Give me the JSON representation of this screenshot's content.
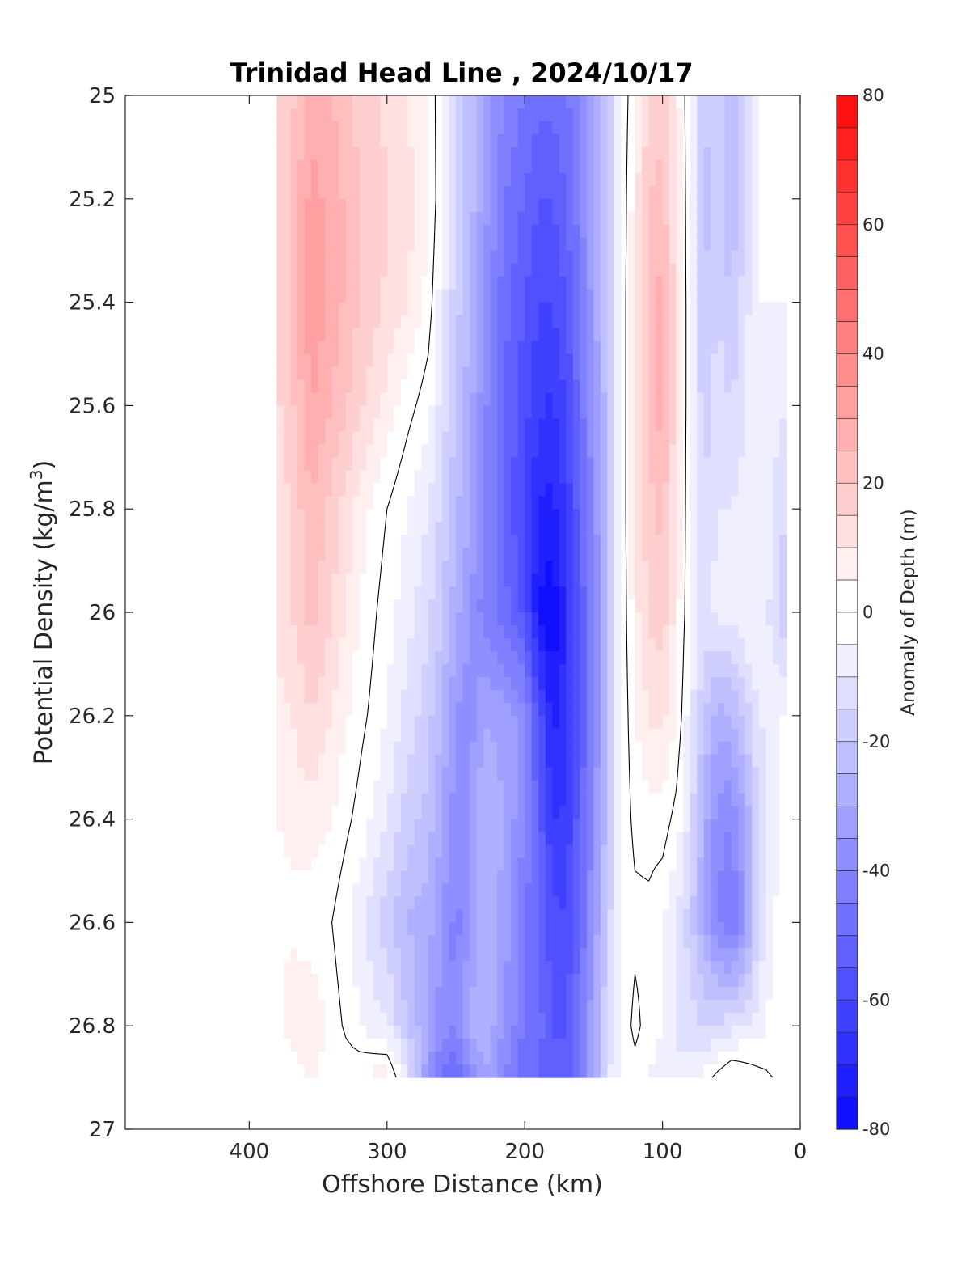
{
  "chart_data": {
    "type": "heatmap",
    "title": "Trinidad Head Line , 2024/10/17",
    "xlabel": "Offshore Distance (km)",
    "ylabel": "Potential Density (kg/m",
    "ylabel_sup": "3",
    "ylabel_end": ")",
    "xlim": [
      490,
      0
    ],
    "ylim": [
      25,
      27
    ],
    "x_ticks": [
      400,
      300,
      200,
      100,
      0
    ],
    "x_tick_labels": [
      "400",
      "300",
      "200",
      "100",
      "0"
    ],
    "y_ticks": [
      25,
      25.2,
      25.4,
      25.6,
      25.8,
      26,
      26.2,
      26.4,
      26.6,
      26.8,
      27
    ],
    "y_tick_labels": [
      "25",
      "25.2",
      "25.4",
      "25.6",
      "25.8",
      "26",
      "26.2",
      "26.4",
      "26.6",
      "26.8",
      "27"
    ],
    "colorbar": {
      "label": "Anomaly of Depth (m)",
      "range": [
        -80,
        80
      ],
      "ticks": [
        80,
        60,
        40,
        20,
        0,
        -20,
        -40,
        -60,
        -80
      ],
      "tick_labels": [
        "80",
        "60",
        "40",
        "20",
        "0",
        "-20",
        "-40",
        "-60",
        "-80"
      ],
      "level_step": 5,
      "colormap": "blue-white-red",
      "low_color": "#0000ff",
      "mid_color": "#ffffff",
      "high_color": "#ff0000"
    },
    "data_extent": {
      "x": [
        380,
        10
      ],
      "density": [
        25,
        26.9
      ]
    },
    "zero_contour": true,
    "x_nodes": [
      380,
      370,
      355,
      340,
      320,
      300,
      285,
      270,
      260,
      250,
      240,
      230,
      215,
      200,
      190,
      180,
      170,
      160,
      150,
      140,
      130,
      120,
      110,
      100,
      90,
      80,
      70,
      60,
      50,
      40,
      30,
      20,
      10
    ],
    "y_nodes": [
      25,
      25.2,
      25.4,
      25.6,
      25.8,
      26,
      26.2,
      26.4,
      26.6,
      26.8,
      26.9
    ],
    "values": [
      [
        15,
        18,
        28,
        25,
        18,
        14,
        10,
        5,
        -5,
        -15,
        -22,
        -30,
        -40,
        -45,
        -48,
        -48,
        -46,
        -40,
        -30,
        -20,
        -5,
        5,
        15,
        18,
        8,
        -5,
        -20,
        -15,
        -25,
        -15,
        -5,
        -3,
        -2
      ],
      [
        15,
        20,
        32,
        28,
        20,
        15,
        12,
        6,
        -5,
        -15,
        -22,
        -32,
        -45,
        -50,
        -55,
        -55,
        -50,
        -42,
        -30,
        -20,
        -5,
        8,
        20,
        22,
        10,
        -5,
        -22,
        -18,
        -25,
        -15,
        -5,
        -3,
        -3
      ],
      [
        15,
        20,
        35,
        28,
        20,
        14,
        10,
        3,
        -8,
        -18,
        -25,
        -35,
        -48,
        -55,
        -60,
        -60,
        -55,
        -45,
        -32,
        -20,
        -5,
        10,
        22,
        28,
        12,
        -5,
        -20,
        -15,
        -20,
        -12,
        -5,
        -5,
        -5
      ],
      [
        14,
        18,
        30,
        25,
        16,
        8,
        2,
        -3,
        -12,
        -20,
        -28,
        -38,
        -50,
        -58,
        -64,
        -66,
        -60,
        -48,
        -35,
        -22,
        -5,
        10,
        22,
        28,
        12,
        -5,
        -18,
        -12,
        -15,
        -10,
        -5,
        -8,
        -10
      ],
      [
        12,
        15,
        25,
        18,
        8,
        0,
        -5,
        -10,
        -16,
        -24,
        -30,
        -40,
        -50,
        -62,
        -70,
        -72,
        -64,
        -52,
        -38,
        -24,
        -5,
        10,
        18,
        22,
        10,
        -5,
        -15,
        -10,
        -10,
        -8,
        -5,
        -10,
        -15
      ],
      [
        12,
        14,
        22,
        15,
        5,
        -3,
        -8,
        -14,
        -20,
        -28,
        -35,
        -42,
        -48,
        -56,
        -76,
        -80,
        -68,
        -54,
        -40,
        -25,
        -5,
        8,
        16,
        18,
        8,
        -5,
        -12,
        -8,
        -8,
        -5,
        -5,
        -12,
        -20
      ],
      [
        8,
        10,
        15,
        10,
        2,
        -5,
        -12,
        -18,
        -25,
        -35,
        -38,
        -30,
        -32,
        -38,
        -56,
        -72,
        -68,
        -55,
        -40,
        -25,
        -5,
        5,
        10,
        12,
        5,
        -8,
        -20,
        -28,
        -25,
        -18,
        -10,
        -8,
        -3
      ],
      [
        5,
        6,
        8,
        5,
        -2,
        -10,
        -18,
        -22,
        -30,
        -38,
        -35,
        -25,
        -30,
        -40,
        -52,
        -65,
        -64,
        -52,
        -38,
        -22,
        -5,
        2,
        3,
        3,
        -2,
        -12,
        -28,
        -38,
        -40,
        -30,
        -15,
        -8,
        -3
      ],
      [
        3,
        4,
        2,
        0,
        -8,
        -18,
        -25,
        -28,
        -35,
        -42,
        -35,
        -25,
        -32,
        -45,
        -50,
        -58,
        -60,
        -50,
        -35,
        -18,
        -5,
        -2,
        -2,
        -5,
        -10,
        -18,
        -30,
        -40,
        -45,
        -35,
        -15,
        -5,
        -2
      ],
      [
        4,
        8,
        10,
        3,
        -5,
        -10,
        -20,
        -30,
        -38,
        -40,
        -30,
        -25,
        -35,
        -45,
        -48,
        -55,
        -55,
        -45,
        -30,
        -15,
        -5,
        2,
        -3,
        -5,
        -10,
        -12,
        -15,
        -15,
        -12,
        -10,
        -8,
        -3,
        -1
      ],
      [
        0,
        2,
        5,
        2,
        5,
        8,
        -10,
        -35,
        -45,
        -50,
        -40,
        -30,
        -40,
        -50,
        -50,
        -55,
        -55,
        -45,
        -30,
        -10,
        -5,
        -3,
        -5,
        -8,
        -10,
        -8,
        -3,
        2,
        6,
        4,
        2,
        0,
        0
      ]
    ]
  }
}
